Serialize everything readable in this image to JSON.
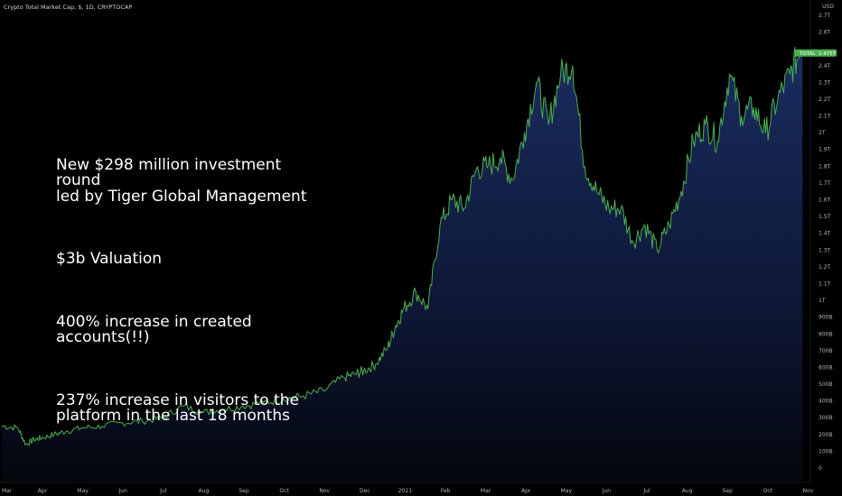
{
  "header": {
    "title": "Crypto Total Market Cap, $, 1D, CRYPTOCAP"
  },
  "axis": {
    "currency": "USD"
  },
  "badge": {
    "symbol": "TOTAL",
    "value": "2.475T",
    "color": "#4caf50"
  },
  "annotation": [
    "New $298 million investment\nround\nled by Tiger Global Management",
    "$3b Valuation",
    "400% increase in created\naccounts(!!)",
    "237% increase in visitors to the\nplatform in the last 18 months"
  ],
  "chart_data": {
    "type": "area",
    "title": "Crypto Total Market Cap, $, 1D, CRYPTOCAP",
    "xlabel": "",
    "ylabel": "",
    "ylim": [
      0,
      2.75
    ],
    "units": "trillion USD",
    "y_ticks": [
      {
        "v": 0,
        "label": "0"
      },
      {
        "v": 0.1,
        "label": "100B"
      },
      {
        "v": 0.2,
        "label": "200B"
      },
      {
        "v": 0.3,
        "label": "300B"
      },
      {
        "v": 0.4,
        "label": "400B"
      },
      {
        "v": 0.5,
        "label": "500B"
      },
      {
        "v": 0.6,
        "label": "600B"
      },
      {
        "v": 0.7,
        "label": "700B"
      },
      {
        "v": 0.8,
        "label": "800B"
      },
      {
        "v": 0.9,
        "label": "900B"
      },
      {
        "v": 1.0,
        "label": "1T"
      },
      {
        "v": 1.1,
        "label": "1.1T"
      },
      {
        "v": 1.2,
        "label": "1.2T"
      },
      {
        "v": 1.3,
        "label": "1.3T"
      },
      {
        "v": 1.4,
        "label": "1.4T"
      },
      {
        "v": 1.5,
        "label": "1.5T"
      },
      {
        "v": 1.6,
        "label": "1.6T"
      },
      {
        "v": 1.7,
        "label": "1.7T"
      },
      {
        "v": 1.8,
        "label": "1.8T"
      },
      {
        "v": 1.9,
        "label": "1.9T"
      },
      {
        "v": 2.0,
        "label": "2T"
      },
      {
        "v": 2.1,
        "label": "2.1T"
      },
      {
        "v": 2.2,
        "label": "2.2T"
      },
      {
        "v": 2.3,
        "label": "2.3T"
      },
      {
        "v": 2.4,
        "label": "2.4T"
      },
      {
        "v": 2.6,
        "label": "2.6T"
      },
      {
        "v": 2.7,
        "label": "2.7T"
      }
    ],
    "x_ticks": [
      "Mar",
      "Apr",
      "May",
      "Jun",
      "Jul",
      "Aug",
      "Sep",
      "Oct",
      "Nov",
      "Dec",
      "2021",
      "Feb",
      "Mar",
      "Apr",
      "May",
      "Jun",
      "Jul",
      "Aug",
      "Sep",
      "Oct",
      "Nov"
    ],
    "series": [
      {
        "color": "#4caf50",
        "x": [
          0,
          0.4,
          0.6,
          0.8,
          1.0,
          1.3,
          1.6,
          2.0,
          2.5,
          3.0,
          3.5,
          4.0,
          4.5,
          5.0,
          5.5,
          6.0,
          6.5,
          7.0,
          7.5,
          8.0,
          8.5,
          8.8,
          9.0,
          9.3,
          9.6,
          9.8,
          10.0,
          10.3,
          10.6,
          10.9,
          11.2,
          11.5,
          11.8,
          12.1,
          12.4,
          12.7,
          13.0,
          13.3,
          13.6,
          13.9,
          14.2,
          14.5,
          14.8,
          15.1,
          15.4,
          15.7,
          16.0,
          16.3,
          16.6,
          16.9,
          17.2,
          17.5,
          17.8,
          18.1,
          18.4,
          18.7,
          19.0,
          19.3,
          19.6,
          19.85
        ],
        "y": [
          0.25,
          0.24,
          0.14,
          0.17,
          0.18,
          0.2,
          0.22,
          0.24,
          0.25,
          0.27,
          0.28,
          0.3,
          0.37,
          0.33,
          0.35,
          0.37,
          0.39,
          0.41,
          0.43,
          0.46,
          0.54,
          0.56,
          0.58,
          0.62,
          0.72,
          0.85,
          0.95,
          1.05,
          0.95,
          1.45,
          1.6,
          1.55,
          1.78,
          1.8,
          1.85,
          1.72,
          2.0,
          2.3,
          2.05,
          2.35,
          2.4,
          1.8,
          1.65,
          1.55,
          1.55,
          1.35,
          1.45,
          1.3,
          1.45,
          1.65,
          1.95,
          2.05,
          1.95,
          2.35,
          2.1,
          2.15,
          2.0,
          2.2,
          2.35,
          2.48
        ]
      }
    ],
    "last_value": 2.475,
    "grid": false
  }
}
